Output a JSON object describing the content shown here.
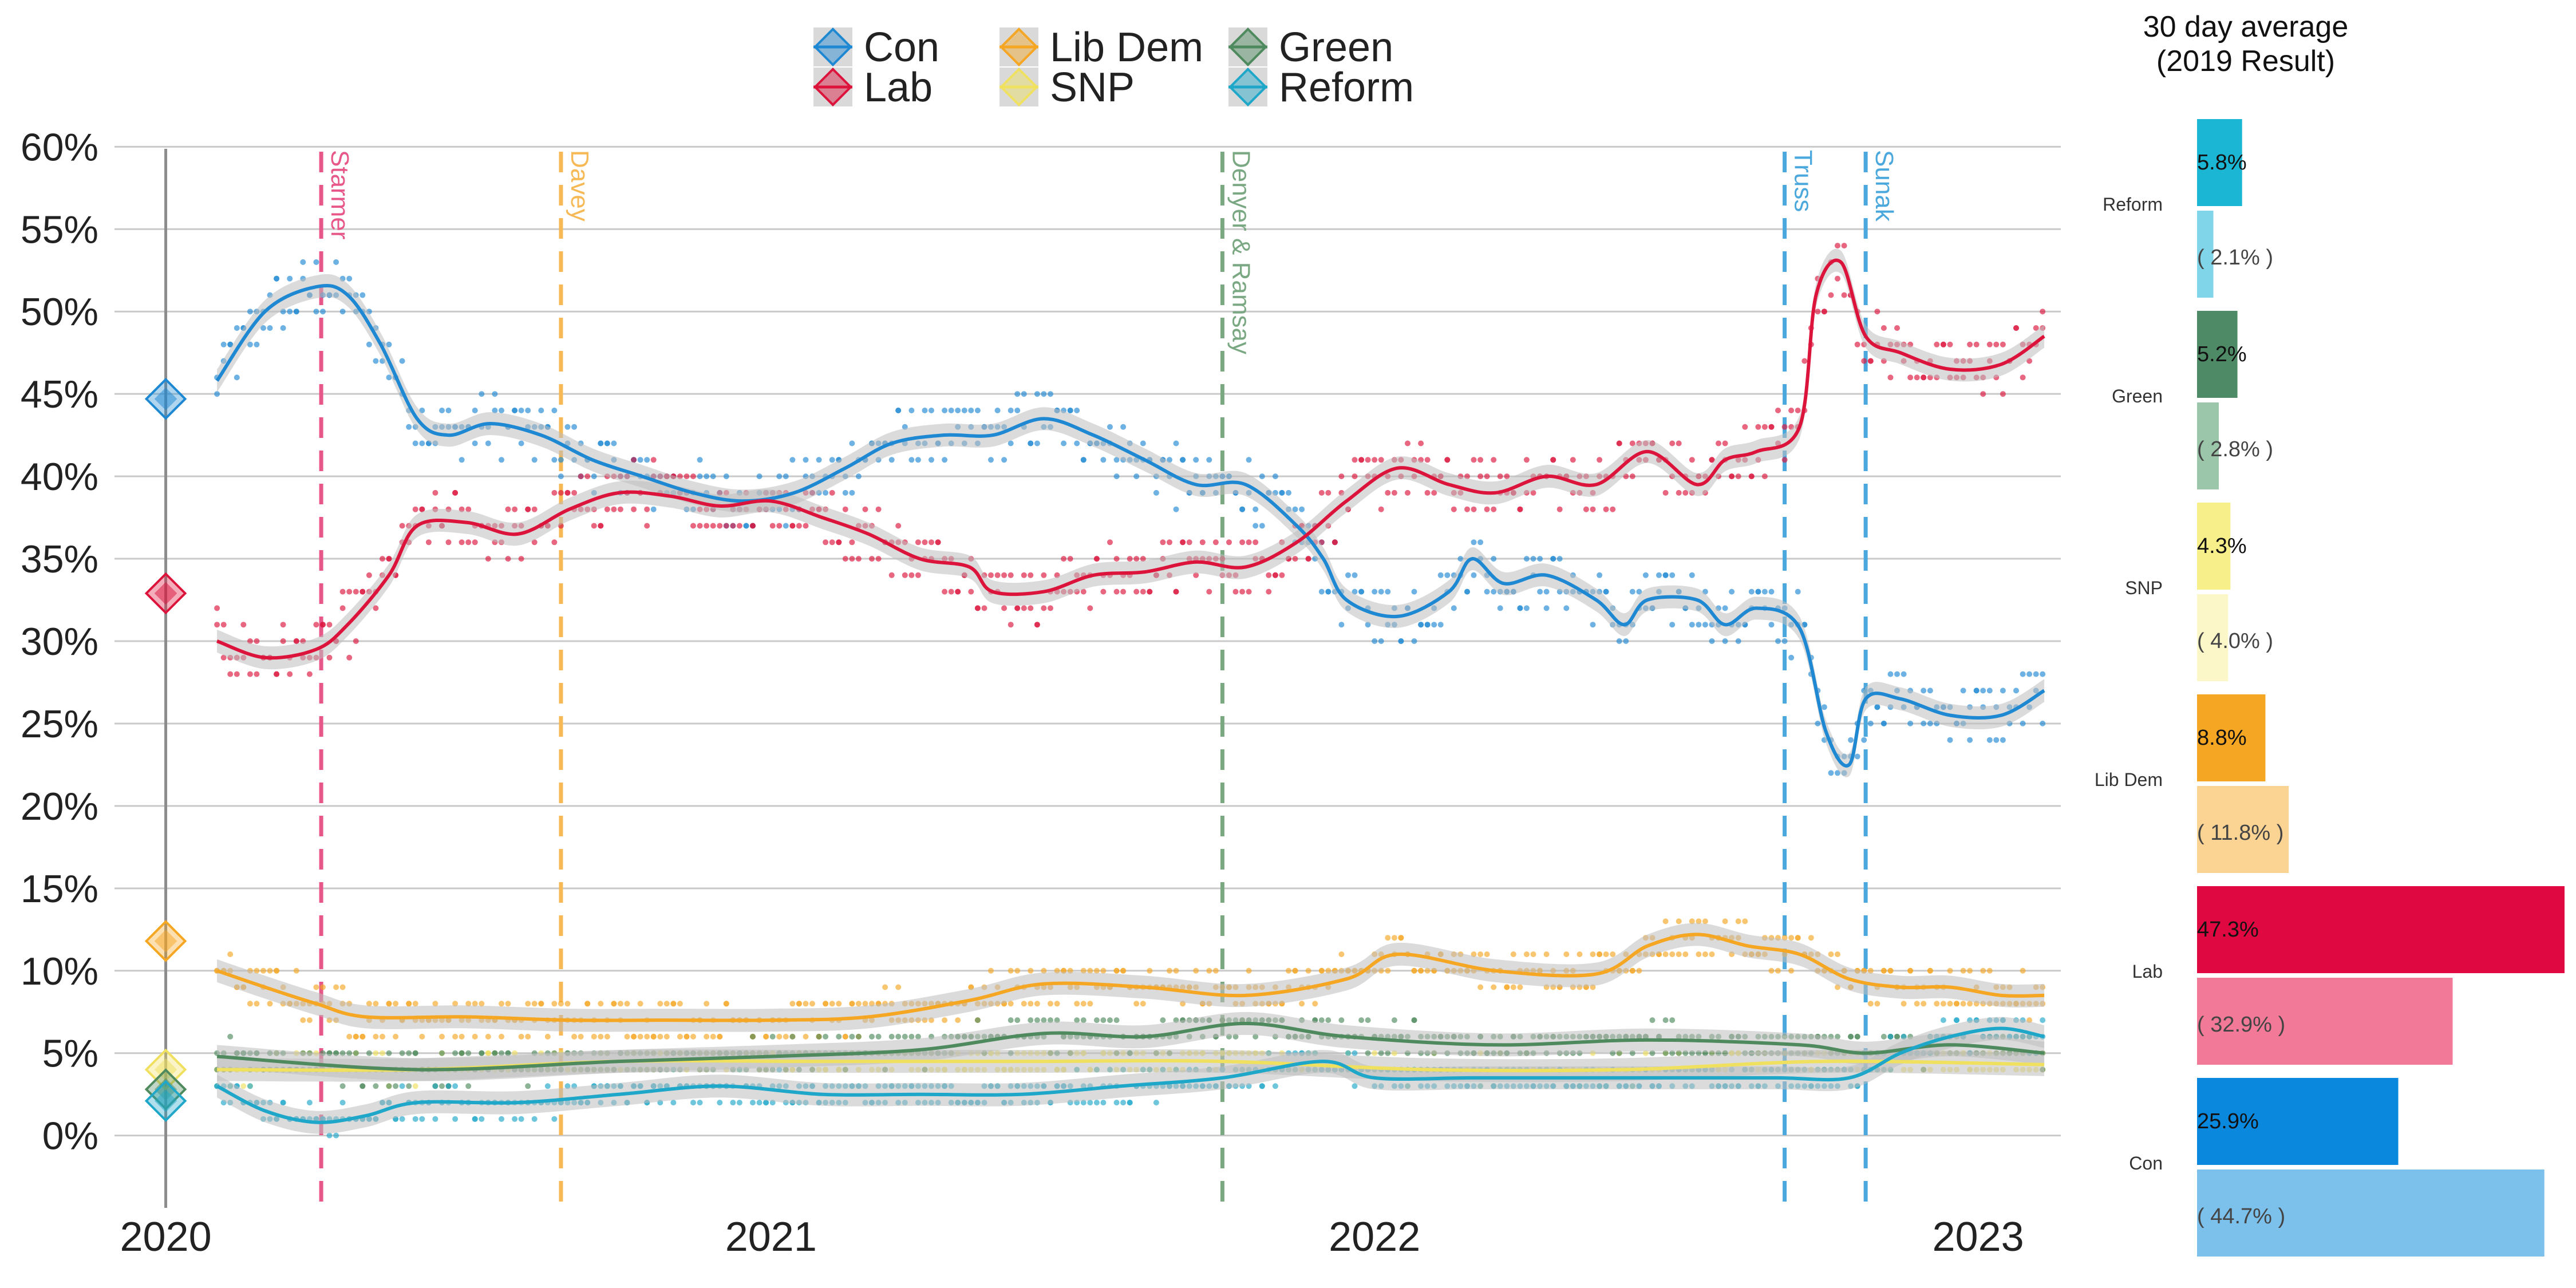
{
  "chart_data": [
    {
      "type": "scatter",
      "title": "",
      "xlabel": "",
      "ylabel": "",
      "x_range": [
        "2019-12-01",
        "2023-02-20"
      ],
      "ylim": [
        -3,
        63
      ],
      "y_ticks": [
        "0%",
        "5%",
        "10%",
        "15%",
        "20%",
        "25%",
        "30%",
        "35%",
        "40%",
        "45%",
        "50%",
        "55%",
        "60%"
      ],
      "x_tick_labels": [
        {
          "date": "2020-01-01",
          "label": "2020"
        },
        {
          "date": "2021-01-01",
          "label": "2021"
        },
        {
          "date": "2022-01-01",
          "label": "2022"
        },
        {
          "date": "2023-01-01",
          "label": "2023"
        }
      ],
      "grid": "horizontal",
      "legend": {
        "placement": "top-center",
        "entries": [
          "Con",
          "Lab",
          "Lib Dem",
          "SNP",
          "Green",
          "Reform"
        ]
      },
      "events": [
        {
          "date": "2020-04-04",
          "label": "Starmer",
          "color": "#e8578a"
        },
        {
          "date": "2020-08-27",
          "label": "Davey",
          "color": "#f7b955"
        },
        {
          "date": "2021-10-01",
          "label": "Denyer & Ramsay",
          "color": "#7aa882"
        },
        {
          "date": "2022-09-06",
          "label": "Truss",
          "color": "#4aa8dd"
        },
        {
          "date": "2022-10-25",
          "label": "Sunak",
          "color": "#4aa8dd"
        }
      ],
      "result_2019": [
        {
          "party": "Con",
          "value": 44.7
        },
        {
          "party": "Lab",
          "value": 32.9
        },
        {
          "party": "Lib Dem",
          "value": 11.8
        },
        {
          "party": "SNP",
          "value": 4.0
        },
        {
          "party": "Green",
          "value": 2.8
        },
        {
          "party": "Reform",
          "value": 2.1
        }
      ],
      "series": [
        {
          "name": "Con",
          "color": "#1e88d2",
          "points": [
            [
              "2020-02-01",
              45.8
            ],
            [
              "2020-03-01",
              50.0
            ],
            [
              "2020-04-01",
              51.5
            ],
            [
              "2020-04-20",
              51.0
            ],
            [
              "2020-05-10",
              48.0
            ],
            [
              "2020-06-01",
              43.5
            ],
            [
              "2020-06-20",
              42.5
            ],
            [
              "2020-07-15",
              43.2
            ],
            [
              "2020-08-15",
              42.5
            ],
            [
              "2020-09-15",
              41.0
            ],
            [
              "2020-10-15",
              40.0
            ],
            [
              "2020-11-15",
              39.0
            ],
            [
              "2020-12-15",
              38.5
            ],
            [
              "2021-01-15",
              39.0
            ],
            [
              "2021-02-15",
              40.5
            ],
            [
              "2021-03-15",
              42.0
            ],
            [
              "2021-04-15",
              42.5
            ],
            [
              "2021-05-15",
              42.5
            ],
            [
              "2021-06-15",
              43.5
            ],
            [
              "2021-07-15",
              42.5
            ],
            [
              "2021-08-15",
              41.0
            ],
            [
              "2021-09-15",
              39.5
            ],
            [
              "2021-10-15",
              39.5
            ],
            [
              "2021-11-15",
              37.0
            ],
            [
              "2021-12-01",
              35.0
            ],
            [
              "2021-12-15",
              32.5
            ],
            [
              "2022-01-15",
              31.5
            ],
            [
              "2022-02-15",
              33.0
            ],
            [
              "2022-03-01",
              35.0
            ],
            [
              "2022-03-20",
              33.5
            ],
            [
              "2022-04-15",
              34.0
            ],
            [
              "2022-05-15",
              32.5
            ],
            [
              "2022-06-01",
              31.0
            ],
            [
              "2022-06-15",
              32.5
            ],
            [
              "2022-07-15",
              32.5
            ],
            [
              "2022-08-01",
              31.0
            ],
            [
              "2022-08-20",
              32.0
            ],
            [
              "2022-09-15",
              30.8
            ],
            [
              "2022-10-01",
              24.5
            ],
            [
              "2022-10-15",
              22.5
            ],
            [
              "2022-10-25",
              26.5
            ],
            [
              "2022-11-15",
              26.5
            ],
            [
              "2022-12-15",
              25.5
            ],
            [
              "2023-01-15",
              25.5
            ],
            [
              "2023-02-10",
              27.0
            ]
          ]
        },
        {
          "name": "Lab",
          "color": "#dc143c",
          "points": [
            [
              "2020-02-01",
              30.0
            ],
            [
              "2020-03-01",
              29.0
            ],
            [
              "2020-04-01",
              29.5
            ],
            [
              "2020-04-20",
              31.0
            ],
            [
              "2020-05-15",
              34.0
            ],
            [
              "2020-06-01",
              37.0
            ],
            [
              "2020-07-01",
              37.2
            ],
            [
              "2020-08-01",
              36.5
            ],
            [
              "2020-09-01",
              38.0
            ],
            [
              "2020-10-01",
              39.0
            ],
            [
              "2020-11-01",
              38.8
            ],
            [
              "2020-12-01",
              38.2
            ],
            [
              "2021-01-01",
              38.5
            ],
            [
              "2021-02-01",
              37.5
            ],
            [
              "2021-03-01",
              36.5
            ],
            [
              "2021-04-01",
              35.0
            ],
            [
              "2021-05-01",
              34.5
            ],
            [
              "2021-05-15",
              33.0
            ],
            [
              "2021-06-15",
              33.0
            ],
            [
              "2021-07-15",
              34.0
            ],
            [
              "2021-08-15",
              34.2
            ],
            [
              "2021-09-15",
              34.8
            ],
            [
              "2021-10-15",
              34.5
            ],
            [
              "2021-11-15",
              36.0
            ],
            [
              "2021-12-15",
              38.5
            ],
            [
              "2022-01-15",
              40.5
            ],
            [
              "2022-02-15",
              39.5
            ],
            [
              "2022-03-15",
              39.0
            ],
            [
              "2022-04-15",
              40.0
            ],
            [
              "2022-05-15",
              39.5
            ],
            [
              "2022-06-15",
              41.5
            ],
            [
              "2022-07-15",
              39.5
            ],
            [
              "2022-08-01",
              41.0
            ],
            [
              "2022-08-20",
              41.5
            ],
            [
              "2022-09-15",
              43.0
            ],
            [
              "2022-09-25",
              51.0
            ],
            [
              "2022-10-10",
              53.0
            ],
            [
              "2022-10-25",
              48.5
            ],
            [
              "2022-11-15",
              47.5
            ],
            [
              "2022-12-15",
              46.5
            ],
            [
              "2023-01-15",
              46.8
            ],
            [
              "2023-02-10",
              48.5
            ]
          ]
        },
        {
          "name": "Lib Dem",
          "color": "#f5a623",
          "points": [
            [
              "2020-02-01",
              10.0
            ],
            [
              "2020-03-01",
              9.0
            ],
            [
              "2020-04-01",
              8.0
            ],
            [
              "2020-05-01",
              7.2
            ],
            [
              "2020-07-01",
              7.2
            ],
            [
              "2020-09-01",
              7.0
            ],
            [
              "2020-11-01",
              7.0
            ],
            [
              "2021-01-01",
              7.0
            ],
            [
              "2021-03-01",
              7.2
            ],
            [
              "2021-05-01",
              8.2
            ],
            [
              "2021-06-15",
              9.2
            ],
            [
              "2021-08-15",
              9.0
            ],
            [
              "2021-10-15",
              8.5
            ],
            [
              "2021-12-15",
              9.5
            ],
            [
              "2022-01-15",
              11.0
            ],
            [
              "2022-03-15",
              10.0
            ],
            [
              "2022-05-15",
              9.8
            ],
            [
              "2022-06-15",
              11.5
            ],
            [
              "2022-07-15",
              12.2
            ],
            [
              "2022-08-15",
              11.5
            ],
            [
              "2022-09-15",
              11.0
            ],
            [
              "2022-10-15",
              9.5
            ],
            [
              "2022-11-15",
              9.0
            ],
            [
              "2022-12-15",
              9.0
            ],
            [
              "2023-01-15",
              8.5
            ],
            [
              "2023-02-10",
              8.5
            ]
          ]
        },
        {
          "name": "SNP",
          "color": "#f0e060",
          "points": [
            [
              "2020-02-01",
              4.0
            ],
            [
              "2020-06-01",
              4.0
            ],
            [
              "2020-10-01",
              4.5
            ],
            [
              "2021-02-01",
              4.5
            ],
            [
              "2021-06-01",
              4.5
            ],
            [
              "2021-10-01",
              4.5
            ],
            [
              "2022-02-01",
              4.0
            ],
            [
              "2022-06-01",
              4.0
            ],
            [
              "2022-10-01",
              4.5
            ],
            [
              "2023-02-10",
              4.3
            ]
          ]
        },
        {
          "name": "Green",
          "color": "#4e8a5e",
          "points": [
            [
              "2020-02-01",
              4.8
            ],
            [
              "2020-06-01",
              4.0
            ],
            [
              "2020-10-01",
              4.5
            ],
            [
              "2021-01-01",
              4.8
            ],
            [
              "2021-04-01",
              5.2
            ],
            [
              "2021-06-15",
              6.2
            ],
            [
              "2021-08-15",
              6.0
            ],
            [
              "2021-10-15",
              6.8
            ],
            [
              "2021-12-15",
              6.0
            ],
            [
              "2022-03-15",
              5.5
            ],
            [
              "2022-06-15",
              5.8
            ],
            [
              "2022-09-15",
              5.5
            ],
            [
              "2022-10-25",
              5.0
            ],
            [
              "2022-12-15",
              5.5
            ],
            [
              "2023-02-10",
              5.0
            ]
          ]
        },
        {
          "name": "Reform",
          "color": "#1fa7c9",
          "points": [
            [
              "2020-02-01",
              3.0
            ],
            [
              "2020-03-01",
              1.5
            ],
            [
              "2020-04-01",
              0.8
            ],
            [
              "2020-05-01",
              1.2
            ],
            [
              "2020-06-01",
              2.0
            ],
            [
              "2020-08-01",
              2.0
            ],
            [
              "2020-10-01",
              2.5
            ],
            [
              "2020-12-01",
              3.0
            ],
            [
              "2021-02-01",
              2.5
            ],
            [
              "2021-04-01",
              2.5
            ],
            [
              "2021-06-01",
              2.5
            ],
            [
              "2021-08-01",
              3.0
            ],
            [
              "2021-10-01",
              3.5
            ],
            [
              "2021-12-01",
              4.5
            ],
            [
              "2022-01-01",
              3.5
            ],
            [
              "2022-03-01",
              3.5
            ],
            [
              "2022-05-01",
              3.5
            ],
            [
              "2022-07-01",
              3.5
            ],
            [
              "2022-09-01",
              3.5
            ],
            [
              "2022-10-15",
              3.5
            ],
            [
              "2022-11-15",
              5.0
            ],
            [
              "2022-12-15",
              6.0
            ],
            [
              "2023-01-15",
              6.5
            ],
            [
              "2023-02-10",
              6.0
            ]
          ]
        }
      ]
    },
    {
      "type": "bar",
      "orientation": "horizontal",
      "title": "30 day average\n(2019 Result)",
      "categories": [
        "Reform",
        "Green",
        "SNP",
        "Lib Dem",
        "Lab",
        "Con"
      ],
      "series": [
        {
          "name": "30 day average",
          "values": [
            5.8,
            5.2,
            4.3,
            8.8,
            47.3,
            25.9
          ],
          "labels": [
            "5.8%",
            "5.2%",
            "4.3%",
            "8.8%",
            "47.3%",
            "25.9%"
          ]
        },
        {
          "name": "2019 Result",
          "values": [
            2.1,
            2.8,
            4.0,
            11.8,
            32.9,
            44.7
          ],
          "labels": [
            "( 2.1% )",
            "( 2.8% )",
            "( 4.0% )",
            "( 11.8% )",
            "( 32.9% )",
            "( 44.7% )"
          ]
        }
      ],
      "colors": {
        "Reform": [
          "#1ab6d4",
          "#80d6e8"
        ],
        "Green": [
          "#4e8a66",
          "#9cc6aa"
        ],
        "SNP": [
          "#f7f08a",
          "#fbf7c8"
        ],
        "Lib Dem": [
          "#f5a623",
          "#fbd392"
        ],
        "Lab": [
          "#e00840",
          "#f27a98"
        ],
        "Con": [
          "#0a88de",
          "#7cc0ec"
        ]
      },
      "xlim": [
        0,
        47.3
      ]
    }
  ]
}
